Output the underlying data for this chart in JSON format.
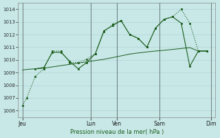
{
  "background_color": "#c8e8e8",
  "grid_color": "#b0d4d4",
  "line_color": "#1a5c1a",
  "xlabel": "Pression niveau de la mer( hPa )",
  "ylim": [
    1005.5,
    1014.5
  ],
  "yticks": [
    1006,
    1007,
    1008,
    1009,
    1010,
    1011,
    1012,
    1013,
    1014
  ],
  "x_day_labels": [
    "Jeu",
    "Lun",
    "Ven",
    "Sam",
    "Dim"
  ],
  "x_day_positions": [
    0,
    8,
    11,
    16,
    22
  ],
  "xlim": [
    -0.5,
    22.5
  ],
  "series1_x": [
    0,
    0.5,
    1.5,
    2.5,
    3.5,
    4.5,
    5.5,
    6.5,
    7.5,
    8.5,
    9.5,
    10.5,
    11.5,
    12.5,
    13.5,
    14.5,
    15.5,
    16.5,
    17.5,
    18.5,
    19.5,
    20.5,
    21.5
  ],
  "series1_y": [
    1006.4,
    1007.0,
    1008.7,
    1009.3,
    1010.7,
    1010.7,
    1009.8,
    1009.8,
    1010.05,
    1010.5,
    1012.2,
    1012.8,
    1013.1,
    1012.0,
    1011.7,
    1011.0,
    1012.5,
    1013.2,
    1013.4,
    1014.0,
    1012.9,
    1010.7,
    1010.7
  ],
  "series2_x": [
    1.5,
    2.5,
    3.5,
    4.5,
    5.5,
    6.5,
    7.5,
    8.5,
    9.5,
    10.5,
    11.5,
    12.5,
    13.5,
    14.5,
    15.5,
    16.5,
    17.5,
    18.5,
    19.5,
    20.5,
    21.5
  ],
  "series2_y": [
    1009.3,
    1009.4,
    1010.6,
    1010.6,
    1009.9,
    1009.3,
    1009.8,
    1010.5,
    1012.3,
    1012.7,
    1013.1,
    1012.0,
    1011.7,
    1011.0,
    1012.5,
    1013.2,
    1013.4,
    1012.9,
    1009.5,
    1010.7,
    1010.7
  ],
  "series3_x": [
    0,
    0.5,
    1.5,
    2.5,
    3.5,
    4.5,
    5.5,
    6.5,
    7.5,
    8.5,
    9.5,
    10.5,
    11.5,
    12.5,
    13.5,
    14.5,
    15.5,
    16.5,
    17.5,
    18.5,
    19.5,
    20.5,
    21.5
  ],
  "series3_y": [
    1009.2,
    1009.25,
    1009.3,
    1009.35,
    1009.45,
    1009.55,
    1009.65,
    1009.75,
    1009.85,
    1009.95,
    1010.05,
    1010.18,
    1010.32,
    1010.46,
    1010.55,
    1010.63,
    1010.7,
    1010.76,
    1010.83,
    1010.9,
    1010.97,
    1010.7,
    1010.7
  ]
}
